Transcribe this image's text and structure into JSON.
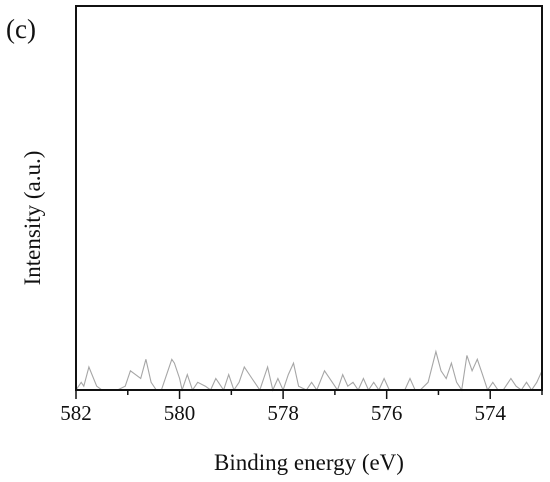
{
  "panel_label": "(c)",
  "colors": {
    "axis": "#111111",
    "series": "#a6a6a6",
    "background": "#ffffff"
  },
  "chart_data": {
    "type": "line",
    "title": "",
    "xlabel": "Binding energy (eV)",
    "ylabel": "Intensity (a.u.)",
    "xlim": [
      582,
      573
    ],
    "x_reversed": true,
    "y_ticks_shown": false,
    "grid": false,
    "legend": "none",
    "xticks": [
      {
        "value": 582,
        "label": "582"
      },
      {
        "value": 580,
        "label": "580"
      },
      {
        "value": 578,
        "label": "578"
      },
      {
        "value": 576,
        "label": "576"
      },
      {
        "value": 574,
        "label": "574"
      }
    ],
    "series": [
      {
        "x": [
          582.0,
          581.9,
          581.85,
          581.75,
          581.6,
          581.5,
          581.4,
          581.2,
          581.05,
          580.95,
          580.85,
          580.75,
          580.65,
          580.55,
          580.45,
          580.35,
          580.15,
          580.1,
          580.0,
          579.95,
          579.85,
          579.75,
          579.65,
          579.5,
          579.4,
          579.3,
          579.15,
          579.05,
          578.95,
          578.85,
          578.75,
          578.6,
          578.45,
          578.3,
          578.2,
          578.1,
          578.0,
          577.9,
          577.8,
          577.7,
          577.55,
          577.45,
          577.35,
          577.2,
          577.05,
          576.95,
          576.85,
          576.75,
          576.65,
          576.55,
          576.45,
          576.35,
          576.25,
          576.15,
          576.05,
          575.95,
          575.85,
          575.75,
          575.65,
          575.55,
          575.45,
          575.35,
          575.2,
          575.05,
          574.95,
          574.85,
          574.75,
          574.65,
          574.55,
          574.45,
          574.35,
          574.25,
          574.15,
          574.05,
          573.95,
          573.85,
          573.75,
          573.6,
          573.5,
          573.4,
          573.3,
          573.2,
          573.1,
          573.0
        ],
        "y": [
          0.0,
          0.02,
          0.01,
          0.06,
          0.01,
          0.0,
          0.0,
          0.0,
          0.01,
          0.05,
          0.04,
          0.03,
          0.08,
          0.02,
          0.0,
          0.0,
          0.08,
          0.07,
          0.03,
          0.0,
          0.04,
          0.0,
          0.02,
          0.01,
          0.0,
          0.03,
          0.0,
          0.04,
          0.0,
          0.02,
          0.06,
          0.03,
          0.0,
          0.06,
          0.0,
          0.03,
          0.0,
          0.04,
          0.07,
          0.01,
          0.0,
          0.02,
          0.0,
          0.05,
          0.02,
          0.0,
          0.04,
          0.01,
          0.02,
          0.0,
          0.03,
          0.0,
          0.02,
          0.0,
          0.03,
          0.0,
          0.0,
          0.0,
          0.0,
          0.03,
          0.0,
          0.0,
          0.02,
          0.1,
          0.05,
          0.03,
          0.07,
          0.02,
          0.0,
          0.09,
          0.05,
          0.08,
          0.04,
          0.0,
          0.02,
          0.0,
          0.0,
          0.03,
          0.01,
          0.0,
          0.02,
          0.0,
          0.02,
          0.05
        ]
      }
    ]
  }
}
